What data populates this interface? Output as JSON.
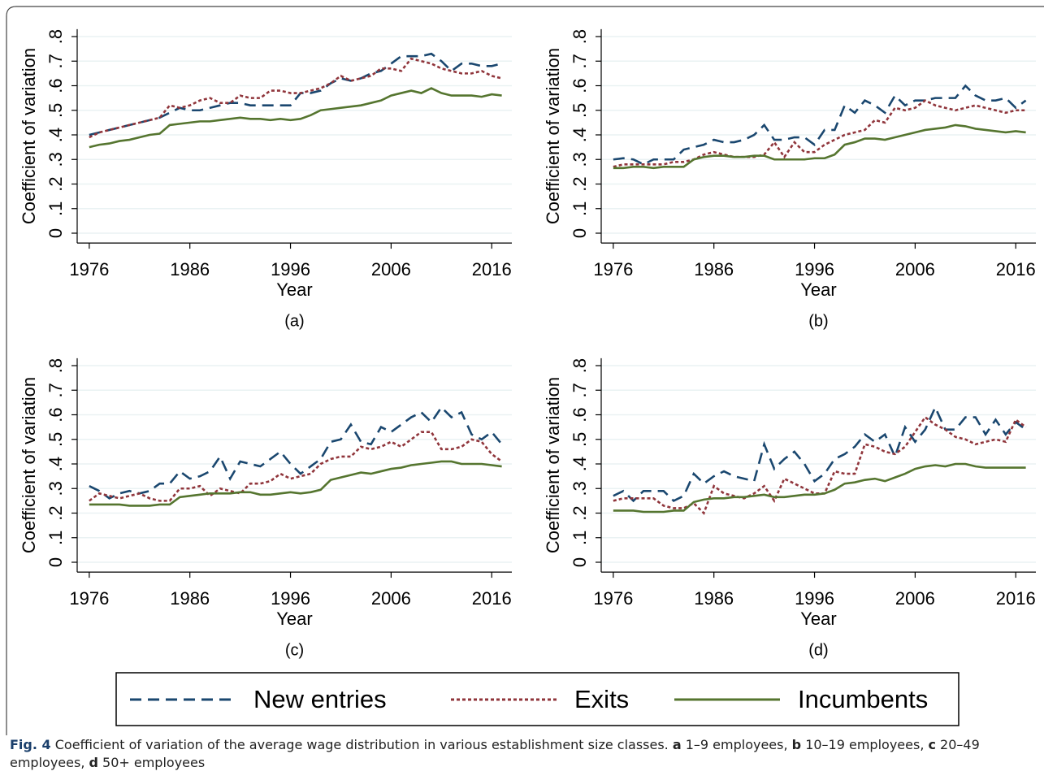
{
  "chart_data": [
    {
      "type": "line",
      "title": "(a)",
      "xlabel": "Year",
      "ylabel": "Coefficient of variation",
      "x": [
        1976,
        1977,
        1978,
        1979,
        1980,
        1981,
        1982,
        1983,
        1984,
        1985,
        1986,
        1987,
        1988,
        1989,
        1990,
        1991,
        1992,
        1993,
        1994,
        1995,
        1996,
        1997,
        1998,
        1999,
        2000,
        2001,
        2002,
        2003,
        2004,
        2005,
        2006,
        2007,
        2008,
        2009,
        2010,
        2011,
        2012,
        2013,
        2014,
        2015,
        2016,
        2017
      ],
      "xlim": [
        1974.8,
        2018
      ],
      "xticks": [
        1976,
        1986,
        1996,
        2006,
        2016
      ],
      "ylim": [
        -0.04,
        0.83
      ],
      "yticks": [
        0,
        {
          "value": 0.1,
          "label": ".1"
        },
        {
          "value": 0.2,
          "label": ".2"
        },
        {
          "value": 0.3,
          "label": ".3"
        },
        {
          "value": 0.4,
          "label": ".4"
        },
        {
          "value": 0.5,
          "label": ".5"
        },
        {
          "value": 0.6,
          "label": ".6"
        },
        {
          "value": 0.7,
          "label": ".7"
        },
        {
          "value": 0.8,
          "label": ".8"
        }
      ],
      "grid": true,
      "series": [
        {
          "name": "New entries",
          "color": "#1a476f",
          "linestyle": "dashed",
          "values": [
            0.4,
            0.41,
            0.42,
            0.43,
            0.44,
            0.45,
            0.46,
            0.47,
            0.49,
            0.51,
            0.5,
            0.5,
            0.51,
            0.52,
            0.53,
            0.53,
            0.52,
            0.52,
            0.52,
            0.52,
            0.52,
            0.57,
            0.57,
            0.58,
            0.61,
            0.63,
            0.62,
            0.63,
            0.65,
            0.66,
            0.69,
            0.72,
            0.72,
            0.72,
            0.73,
            0.7,
            0.66,
            0.69,
            0.69,
            0.68,
            0.68,
            0.69
          ]
        },
        {
          "name": "Exits",
          "color": "#90353b",
          "linestyle": "dotted",
          "values": [
            0.39,
            0.41,
            0.42,
            0.43,
            0.44,
            0.45,
            0.46,
            0.47,
            0.52,
            0.51,
            0.52,
            0.54,
            0.55,
            0.53,
            0.53,
            0.56,
            0.55,
            0.55,
            0.58,
            0.58,
            0.57,
            0.57,
            0.58,
            0.59,
            0.61,
            0.64,
            0.62,
            0.63,
            0.64,
            0.67,
            0.67,
            0.66,
            0.71,
            0.7,
            0.69,
            0.67,
            0.66,
            0.65,
            0.65,
            0.66,
            0.64,
            0.63
          ]
        },
        {
          "name": "Incumbents",
          "color": "#55752f",
          "linestyle": "solid",
          "values": [
            0.35,
            0.36,
            0.365,
            0.375,
            0.38,
            0.39,
            0.4,
            0.405,
            0.44,
            0.445,
            0.45,
            0.455,
            0.455,
            0.46,
            0.465,
            0.47,
            0.465,
            0.465,
            0.46,
            0.465,
            0.46,
            0.465,
            0.48,
            0.5,
            0.505,
            0.51,
            0.515,
            0.52,
            0.53,
            0.54,
            0.56,
            0.57,
            0.58,
            0.57,
            0.59,
            0.57,
            0.56,
            0.56,
            0.56,
            0.555,
            0.565,
            0.56
          ]
        }
      ]
    },
    {
      "type": "line",
      "title": "(b)",
      "xlabel": "Year",
      "ylabel": "Coefficient of variation",
      "x": [
        1976,
        1977,
        1978,
        1979,
        1980,
        1981,
        1982,
        1983,
        1984,
        1985,
        1986,
        1987,
        1988,
        1989,
        1990,
        1991,
        1992,
        1993,
        1994,
        1995,
        1996,
        1997,
        1998,
        1999,
        2000,
        2001,
        2002,
        2003,
        2004,
        2005,
        2006,
        2007,
        2008,
        2009,
        2010,
        2011,
        2012,
        2013,
        2014,
        2015,
        2016,
        2017
      ],
      "xlim": [
        1974.8,
        2018
      ],
      "xticks": [
        1976,
        1986,
        1996,
        2006,
        2016
      ],
      "ylim": [
        -0.04,
        0.83
      ],
      "yticks": [
        0,
        {
          "value": 0.1,
          "label": ".1"
        },
        {
          "value": 0.2,
          "label": ".2"
        },
        {
          "value": 0.3,
          "label": ".3"
        },
        {
          "value": 0.4,
          "label": ".4"
        },
        {
          "value": 0.5,
          "label": ".5"
        },
        {
          "value": 0.6,
          "label": ".6"
        },
        {
          "value": 0.7,
          "label": ".7"
        },
        {
          "value": 0.8,
          "label": ".8"
        }
      ],
      "grid": true,
      "series": [
        {
          "name": "New entries",
          "color": "#1a476f",
          "linestyle": "dashed",
          "values": [
            0.3,
            0.305,
            0.3,
            0.28,
            0.3,
            0.3,
            0.3,
            0.34,
            0.35,
            0.36,
            0.38,
            0.37,
            0.37,
            0.38,
            0.4,
            0.44,
            0.38,
            0.38,
            0.39,
            0.39,
            0.36,
            0.42,
            0.42,
            0.52,
            0.49,
            0.54,
            0.52,
            0.49,
            0.56,
            0.52,
            0.54,
            0.54,
            0.55,
            0.55,
            0.55,
            0.6,
            0.56,
            0.54,
            0.54,
            0.55,
            0.51,
            0.54
          ]
        },
        {
          "name": "Exits",
          "color": "#90353b",
          "linestyle": "dotted",
          "values": [
            0.27,
            0.28,
            0.28,
            0.28,
            0.28,
            0.28,
            0.29,
            0.29,
            0.3,
            0.32,
            0.33,
            0.32,
            0.31,
            0.31,
            0.31,
            0.32,
            0.37,
            0.31,
            0.37,
            0.33,
            0.33,
            0.36,
            0.38,
            0.4,
            0.41,
            0.42,
            0.46,
            0.45,
            0.51,
            0.5,
            0.51,
            0.54,
            0.52,
            0.51,
            0.5,
            0.51,
            0.52,
            0.51,
            0.5,
            0.49,
            0.5,
            0.5
          ]
        },
        {
          "name": "Incumbents",
          "color": "#55752f",
          "linestyle": "solid",
          "values": [
            0.265,
            0.265,
            0.27,
            0.27,
            0.265,
            0.27,
            0.27,
            0.27,
            0.3,
            0.31,
            0.315,
            0.315,
            0.31,
            0.31,
            0.315,
            0.315,
            0.3,
            0.3,
            0.3,
            0.3,
            0.305,
            0.305,
            0.32,
            0.36,
            0.37,
            0.385,
            0.385,
            0.38,
            0.39,
            0.4,
            0.41,
            0.42,
            0.425,
            0.43,
            0.44,
            0.435,
            0.425,
            0.42,
            0.415,
            0.41,
            0.415,
            0.41
          ]
        }
      ]
    },
    {
      "type": "line",
      "title": "(c)",
      "xlabel": "Year",
      "ylabel": "Coefficient of variation",
      "x": [
        1976,
        1977,
        1978,
        1979,
        1980,
        1981,
        1982,
        1983,
        1984,
        1985,
        1986,
        1987,
        1988,
        1989,
        1990,
        1991,
        1992,
        1993,
        1994,
        1995,
        1996,
        1997,
        1998,
        1999,
        2000,
        2001,
        2002,
        2003,
        2004,
        2005,
        2006,
        2007,
        2008,
        2009,
        2010,
        2011,
        2012,
        2013,
        2014,
        2015,
        2016,
        2017
      ],
      "xlim": [
        1974.8,
        2018
      ],
      "xticks": [
        1976,
        1986,
        1996,
        2006,
        2016
      ],
      "ylim": [
        -0.04,
        0.83
      ],
      "yticks": [
        0,
        {
          "value": 0.1,
          "label": ".1"
        },
        {
          "value": 0.2,
          "label": ".2"
        },
        {
          "value": 0.3,
          "label": ".3"
        },
        {
          "value": 0.4,
          "label": ".4"
        },
        {
          "value": 0.5,
          "label": ".5"
        },
        {
          "value": 0.6,
          "label": ".6"
        },
        {
          "value": 0.7,
          "label": ".7"
        },
        {
          "value": 0.8,
          "label": ".8"
        }
      ],
      "grid": true,
      "series": [
        {
          "name": "New entries",
          "color": "#1a476f",
          "linestyle": "dashed",
          "values": [
            0.31,
            0.29,
            0.26,
            0.28,
            0.29,
            0.28,
            0.29,
            0.32,
            0.32,
            0.37,
            0.34,
            0.35,
            0.37,
            0.43,
            0.34,
            0.41,
            0.4,
            0.39,
            0.42,
            0.45,
            0.4,
            0.36,
            0.39,
            0.42,
            0.49,
            0.5,
            0.56,
            0.49,
            0.48,
            0.55,
            0.53,
            0.56,
            0.59,
            0.61,
            0.57,
            0.63,
            0.59,
            0.61,
            0.52,
            0.5,
            0.53,
            0.48
          ]
        },
        {
          "name": "Exits",
          "color": "#90353b",
          "linestyle": "dotted",
          "values": [
            0.25,
            0.28,
            0.27,
            0.26,
            0.27,
            0.28,
            0.26,
            0.25,
            0.25,
            0.3,
            0.3,
            0.31,
            0.27,
            0.3,
            0.29,
            0.28,
            0.32,
            0.32,
            0.33,
            0.36,
            0.34,
            0.35,
            0.36,
            0.4,
            0.42,
            0.43,
            0.43,
            0.47,
            0.46,
            0.47,
            0.49,
            0.47,
            0.5,
            0.53,
            0.53,
            0.46,
            0.46,
            0.47,
            0.5,
            0.49,
            0.44,
            0.41
          ]
        },
        {
          "name": "Incumbents",
          "color": "#55752f",
          "linestyle": "solid",
          "values": [
            0.235,
            0.235,
            0.235,
            0.235,
            0.23,
            0.23,
            0.23,
            0.235,
            0.235,
            0.265,
            0.27,
            0.275,
            0.28,
            0.28,
            0.28,
            0.285,
            0.285,
            0.275,
            0.275,
            0.28,
            0.285,
            0.28,
            0.285,
            0.295,
            0.335,
            0.345,
            0.355,
            0.365,
            0.36,
            0.37,
            0.38,
            0.385,
            0.395,
            0.4,
            0.405,
            0.41,
            0.41,
            0.4,
            0.4,
            0.4,
            0.395,
            0.39
          ]
        }
      ]
    },
    {
      "type": "line",
      "title": "(d)",
      "xlabel": "Year",
      "ylabel": "Coefficient of variation",
      "x": [
        1976,
        1977,
        1978,
        1979,
        1980,
        1981,
        1982,
        1983,
        1984,
        1985,
        1986,
        1987,
        1988,
        1989,
        1990,
        1991,
        1992,
        1993,
        1994,
        1995,
        1996,
        1997,
        1998,
        1999,
        2000,
        2001,
        2002,
        2003,
        2004,
        2005,
        2006,
        2007,
        2008,
        2009,
        2010,
        2011,
        2012,
        2013,
        2014,
        2015,
        2016,
        2017
      ],
      "xlim": [
        1974.8,
        2018
      ],
      "xticks": [
        1976,
        1986,
        1996,
        2006,
        2016
      ],
      "ylim": [
        -0.04,
        0.83
      ],
      "yticks": [
        0,
        {
          "value": 0.1,
          "label": ".1"
        },
        {
          "value": 0.2,
          "label": ".2"
        },
        {
          "value": 0.3,
          "label": ".3"
        },
        {
          "value": 0.4,
          "label": ".4"
        },
        {
          "value": 0.5,
          "label": ".5"
        },
        {
          "value": 0.6,
          "label": ".6"
        },
        {
          "value": 0.7,
          "label": ".7"
        },
        {
          "value": 0.8,
          "label": ".8"
        }
      ],
      "grid": true,
      "series": [
        {
          "name": "New entries",
          "color": "#1a476f",
          "linestyle": "dashed",
          "values": [
            0.27,
            0.29,
            0.25,
            0.29,
            0.29,
            0.29,
            0.25,
            0.27,
            0.36,
            0.32,
            0.35,
            0.37,
            0.35,
            0.34,
            0.33,
            0.48,
            0.38,
            0.42,
            0.45,
            0.4,
            0.33,
            0.36,
            0.42,
            0.44,
            0.47,
            0.52,
            0.49,
            0.52,
            0.43,
            0.55,
            0.49,
            0.54,
            0.63,
            0.54,
            0.54,
            0.59,
            0.59,
            0.52,
            0.58,
            0.52,
            0.57,
            0.54
          ]
        },
        {
          "name": "Exits",
          "color": "#90353b",
          "linestyle": "dotted",
          "values": [
            0.25,
            0.26,
            0.26,
            0.26,
            0.26,
            0.23,
            0.22,
            0.22,
            0.24,
            0.2,
            0.31,
            0.28,
            0.27,
            0.26,
            0.28,
            0.31,
            0.25,
            0.34,
            0.32,
            0.3,
            0.28,
            0.28,
            0.37,
            0.36,
            0.36,
            0.48,
            0.47,
            0.45,
            0.44,
            0.47,
            0.53,
            0.59,
            0.56,
            0.54,
            0.51,
            0.5,
            0.48,
            0.49,
            0.5,
            0.49,
            0.58,
            0.55
          ]
        },
        {
          "name": "Incumbents",
          "color": "#55752f",
          "linestyle": "solid",
          "values": [
            0.21,
            0.21,
            0.21,
            0.205,
            0.205,
            0.205,
            0.21,
            0.21,
            0.245,
            0.255,
            0.26,
            0.26,
            0.265,
            0.265,
            0.27,
            0.275,
            0.265,
            0.265,
            0.27,
            0.275,
            0.275,
            0.28,
            0.295,
            0.32,
            0.325,
            0.335,
            0.34,
            0.33,
            0.345,
            0.36,
            0.38,
            0.39,
            0.395,
            0.39,
            0.4,
            0.4,
            0.39,
            0.385,
            0.385,
            0.385,
            0.385,
            0.385
          ]
        }
      ]
    }
  ],
  "caption": {
    "label": "Fig. 4",
    "text": " Coefficient of variation of the average wage distribution in various establishment size classes. ",
    "items": [
      {
        "key": "a",
        "text": " 1–9 employees, "
      },
      {
        "key": "b",
        "text": " 10–19 employees, "
      },
      {
        "key": "c",
        "text": " 20–49 employees, "
      },
      {
        "key": "d",
        "text": " 50+ employees"
      }
    ]
  }
}
